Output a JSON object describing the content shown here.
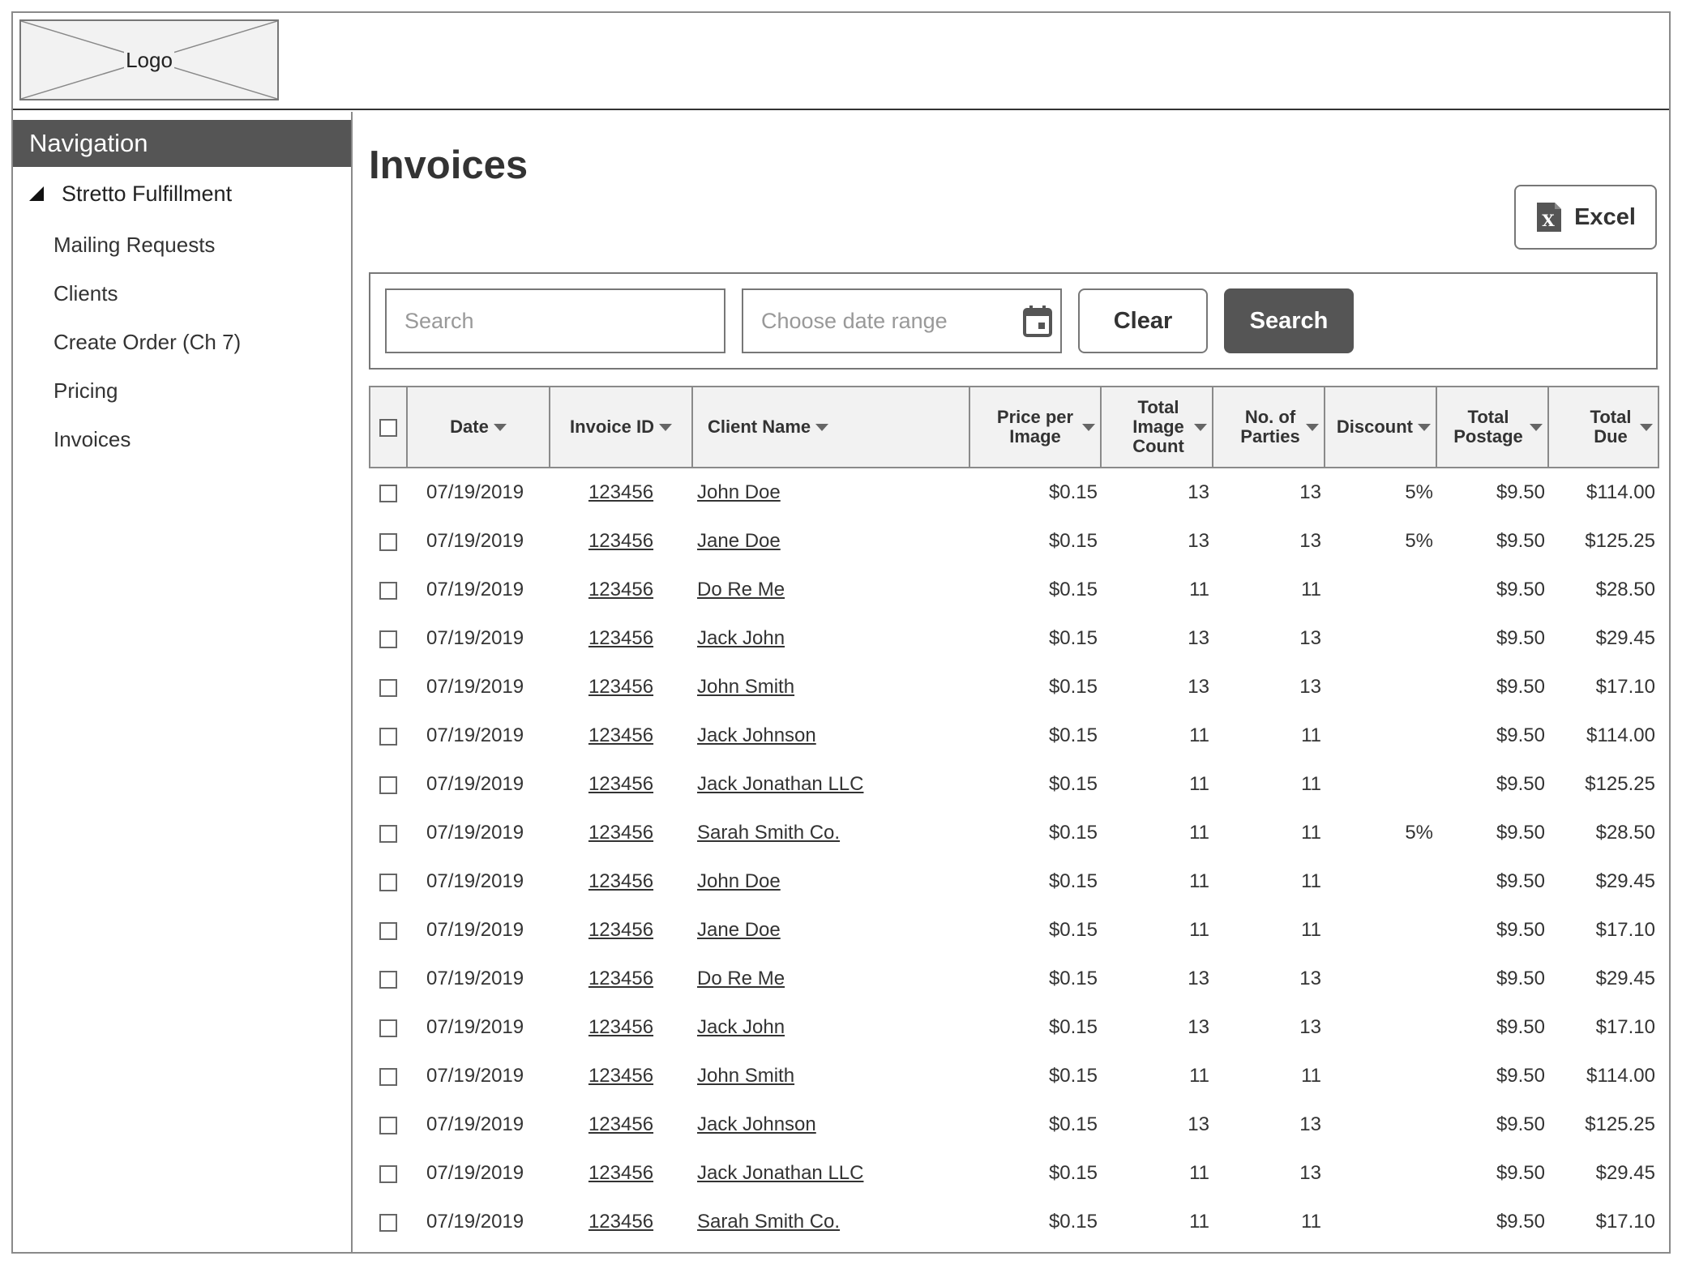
{
  "header": {
    "logo_text": "Logo"
  },
  "sidebar": {
    "title": "Navigation",
    "group": {
      "label": "Stretto Fulfillment"
    },
    "items": [
      {
        "label": "Mailing Requests"
      },
      {
        "label": "Clients"
      },
      {
        "label": "Create Order (Ch 7)"
      },
      {
        "label": "Pricing"
      },
      {
        "label": "Invoices"
      }
    ]
  },
  "main": {
    "title": "Invoices",
    "excel_label": "Excel",
    "filters": {
      "search_placeholder": "Search",
      "date_placeholder": "Choose date range",
      "clear_label": "Clear",
      "search_label": "Search"
    },
    "table": {
      "columns": {
        "date": "Date",
        "invoice_id": "Invoice ID",
        "client_name": "Client Name",
        "price_per_image": "Price per Image",
        "total_image_count": "Total Image Count",
        "no_of_parties": "No. of Parties",
        "discount": "Discount",
        "total_postage": "Total Postage",
        "total_due": "Total Due"
      },
      "rows": [
        {
          "date": "07/19/2019",
          "invoice_id": "123456",
          "client": "John Doe",
          "price": "$0.15",
          "image_count": "13",
          "parties": "13",
          "discount": "5%",
          "postage": "$9.50",
          "due": "$114.00"
        },
        {
          "date": "07/19/2019",
          "invoice_id": "123456",
          "client": "Jane Doe",
          "price": "$0.15",
          "image_count": "13",
          "parties": "13",
          "discount": "5%",
          "postage": "$9.50",
          "due": "$125.25"
        },
        {
          "date": "07/19/2019",
          "invoice_id": "123456",
          "client": "Do Re Me",
          "price": "$0.15",
          "image_count": "11",
          "parties": "11",
          "discount": "",
          "postage": "$9.50",
          "due": "$28.50"
        },
        {
          "date": "07/19/2019",
          "invoice_id": "123456",
          "client": "Jack John",
          "price": "$0.15",
          "image_count": "13",
          "parties": "13",
          "discount": "",
          "postage": "$9.50",
          "due": "$29.45"
        },
        {
          "date": "07/19/2019",
          "invoice_id": "123456",
          "client": "John Smith",
          "price": "$0.15",
          "image_count": "13",
          "parties": "13",
          "discount": "",
          "postage": "$9.50",
          "due": "$17.10"
        },
        {
          "date": "07/19/2019",
          "invoice_id": "123456",
          "client": "Jack Johnson",
          "price": "$0.15",
          "image_count": "11",
          "parties": "11",
          "discount": "",
          "postage": "$9.50",
          "due": "$114.00"
        },
        {
          "date": "07/19/2019",
          "invoice_id": "123456",
          "client": "Jack Jonathan LLC",
          "price": "$0.15",
          "image_count": "11",
          "parties": "11",
          "discount": "",
          "postage": "$9.50",
          "due": "$125.25"
        },
        {
          "date": "07/19/2019",
          "invoice_id": "123456",
          "client": "Sarah Smith Co.",
          "price": "$0.15",
          "image_count": "11",
          "parties": "11",
          "discount": "5%",
          "postage": "$9.50",
          "due": "$28.50"
        },
        {
          "date": "07/19/2019",
          "invoice_id": "123456",
          "client": "John Doe",
          "price": "$0.15",
          "image_count": "11",
          "parties": "11",
          "discount": "",
          "postage": "$9.50",
          "due": "$29.45"
        },
        {
          "date": "07/19/2019",
          "invoice_id": "123456",
          "client": "Jane Doe",
          "price": "$0.15",
          "image_count": "11",
          "parties": "11",
          "discount": "",
          "postage": "$9.50",
          "due": "$17.10"
        },
        {
          "date": "07/19/2019",
          "invoice_id": "123456",
          "client": "Do Re Me",
          "price": "$0.15",
          "image_count": "13",
          "parties": "13",
          "discount": "",
          "postage": "$9.50",
          "due": "$29.45"
        },
        {
          "date": "07/19/2019",
          "invoice_id": "123456",
          "client": "Jack John",
          "price": "$0.15",
          "image_count": "13",
          "parties": "13",
          "discount": "",
          "postage": "$9.50",
          "due": "$17.10"
        },
        {
          "date": "07/19/2019",
          "invoice_id": "123456",
          "client": "John Smith",
          "price": "$0.15",
          "image_count": "11",
          "parties": "11",
          "discount": "",
          "postage": "$9.50",
          "due": "$114.00"
        },
        {
          "date": "07/19/2019",
          "invoice_id": "123456",
          "client": "Jack Johnson",
          "price": "$0.15",
          "image_count": "13",
          "parties": "13",
          "discount": "",
          "postage": "$9.50",
          "due": "$125.25"
        },
        {
          "date": "07/19/2019",
          "invoice_id": "123456",
          "client": "Jack Jonathan LLC",
          "price": "$0.15",
          "image_count": "11",
          "parties": "13",
          "discount": "",
          "postage": "$9.50",
          "due": "$29.45"
        },
        {
          "date": "07/19/2019",
          "invoice_id": "123456",
          "client": "Sarah Smith Co.",
          "price": "$0.15",
          "image_count": "11",
          "parties": "11",
          "discount": "",
          "postage": "$9.50",
          "due": "$17.10"
        }
      ]
    }
  }
}
